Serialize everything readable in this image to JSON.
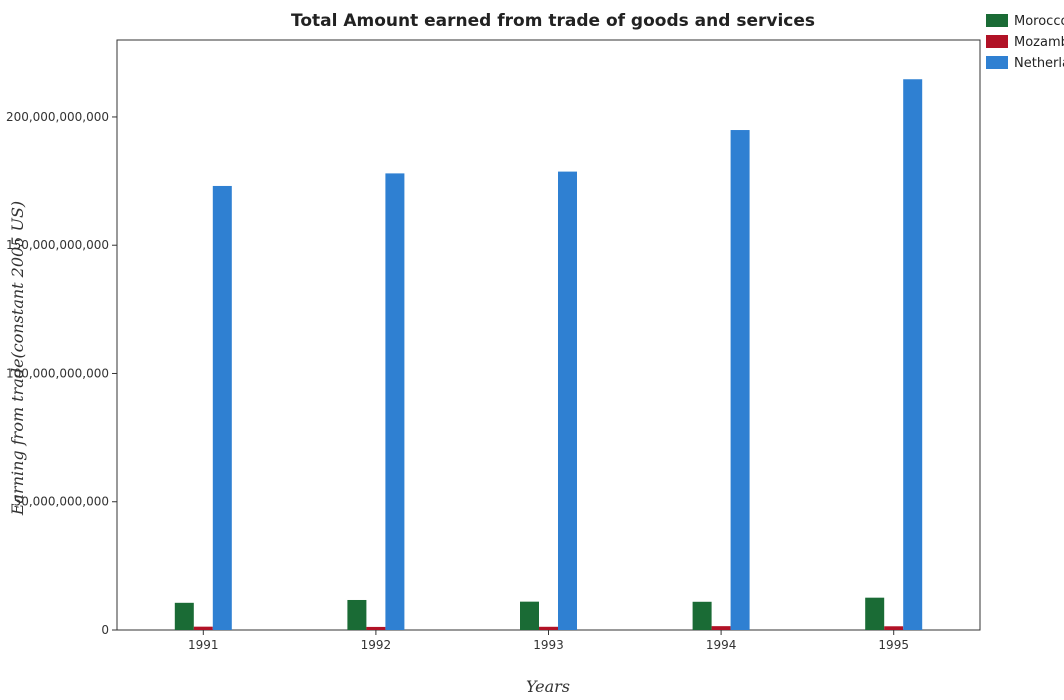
{
  "chart_data": {
    "type": "bar",
    "title": "Total Amount earned from trade of goods and services",
    "xlabel": "Years",
    "ylabel": "Earning from trade(constant 2005 US)",
    "categories": [
      "1991",
      "1992",
      "1993",
      "1994",
      "1995"
    ],
    "series": [
      {
        "name": "Morocco",
        "color": "#1a6b35",
        "values": [
          10600000000,
          11700000000,
          11050000000,
          11000000000,
          12600000000
        ]
      },
      {
        "name": "Mozambique",
        "color": "#b11226",
        "values": [
          1300000000,
          1200000000,
          1250000000,
          1500000000,
          1450000000
        ]
      },
      {
        "name": "Netherlands",
        "color": "#2f80d2",
        "values": [
          173100000000,
          178000000000,
          178700000000,
          194900000000,
          214700000000
        ]
      }
    ],
    "ylim": [
      0,
      230000000000
    ],
    "yticks": [
      0,
      50000000000,
      100000000000,
      150000000000,
      200000000000
    ],
    "ytick_labels": [
      "0",
      "50,000,000,000",
      "100,000,000,000",
      "150,000,000,000",
      "200,000,000,000"
    ],
    "grid": false,
    "legend_position": "top-right"
  }
}
